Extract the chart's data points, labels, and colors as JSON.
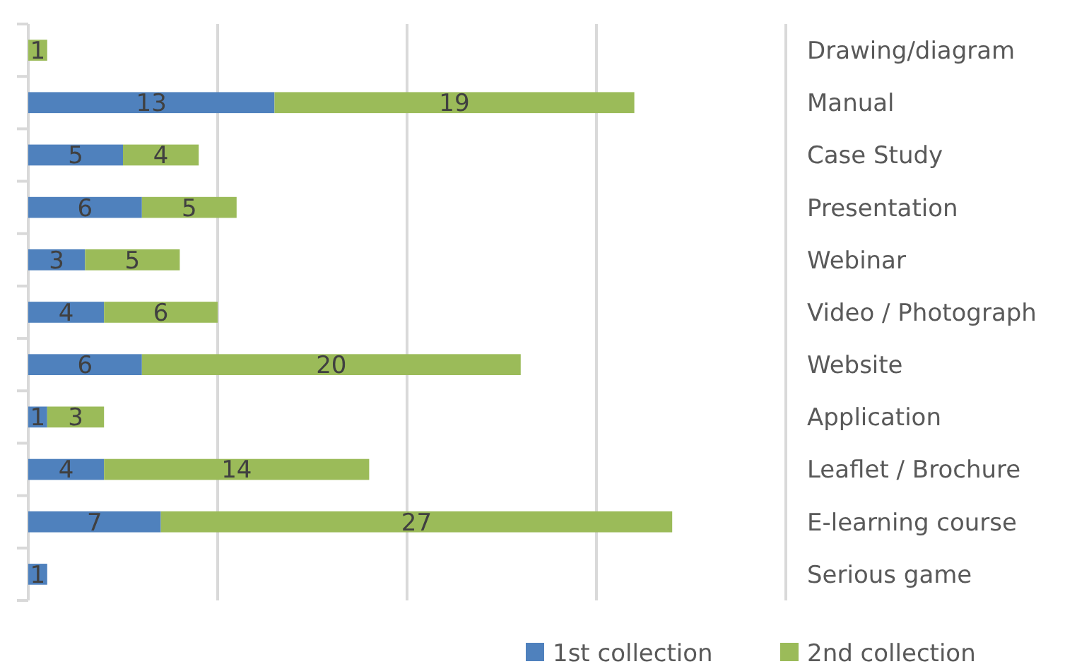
{
  "chart_data": {
    "type": "bar",
    "orientation": "horizontal",
    "stacked": true,
    "data_labels": true,
    "grid": "x",
    "legend": "bottom",
    "tick_labels": "y",
    "categories": [
      "Drawing/diagram",
      "Manual",
      "Case Study",
      "Presentation",
      "Webinar",
      "Video / Photograph",
      "Website",
      "Application",
      "Leaflet / Brochure",
      "E-learning course",
      "Serious game"
    ],
    "xlim": [
      0,
      40
    ],
    "xticks": [
      {
        "value": 0,
        "label": null
      },
      {
        "value": 10,
        "label": null
      },
      {
        "value": 20,
        "label": null
      },
      {
        "value": 30,
        "label": null
      },
      {
        "value": 40,
        "label": null
      }
    ],
    "series": [
      {
        "name": "1st collection",
        "color": "#4f81bd",
        "values": [
          null,
          13,
          5,
          6,
          3,
          4,
          6,
          1,
          4,
          7,
          1
        ]
      },
      {
        "name": "2nd collection",
        "color": "#9bbb59",
        "values": [
          1,
          19,
          4,
          5,
          5,
          6,
          20,
          3,
          14,
          27,
          null
        ]
      }
    ]
  }
}
